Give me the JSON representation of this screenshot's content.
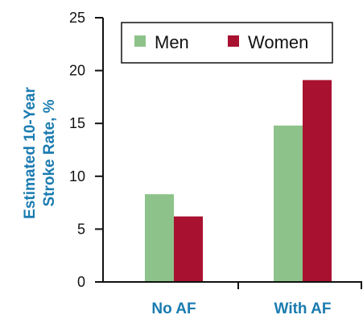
{
  "chart_data": {
    "type": "bar",
    "categories": [
      "No AF",
      "With AF"
    ],
    "series": [
      {
        "name": "Men",
        "color": "#8dc38a",
        "values": [
          8.3,
          14.8
        ]
      },
      {
        "name": "Women",
        "color": "#a81130",
        "values": [
          6.2,
          19.1
        ]
      }
    ],
    "title": "",
    "xlabel": "",
    "ylabel_lines": [
      "Estimated 10-Year",
      "Stroke Rate, %"
    ],
    "ylim": [
      0,
      25
    ],
    "yticks": [
      0,
      5,
      10,
      15,
      20,
      25
    ],
    "grid": false,
    "legend_position": "top"
  },
  "colors": {
    "label_blue": "#1a7bb0",
    "axis": "#111111"
  }
}
